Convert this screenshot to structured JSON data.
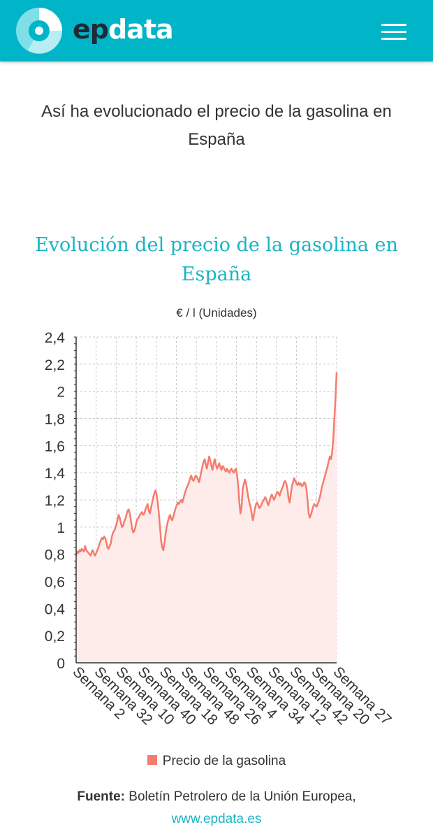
{
  "header": {
    "logo_ep": "ep",
    "logo_data": "data",
    "brand_color": "#00b5c8"
  },
  "page_title": "Así ha evolucionado el precio de la gasolina en España",
  "chart_data": {
    "type": "area",
    "title": "Evolución del precio de la gasolina en España",
    "ylabel": "€ / l (Unidades)",
    "ylim": [
      0,
      2.4
    ],
    "yticks": [
      "0",
      "0,2",
      "0,4",
      "0,6",
      "0,8",
      "1",
      "1,2",
      "1,4",
      "1,6",
      "1,8",
      "2",
      "2,2",
      "2,4"
    ],
    "xticks": [
      "Semana 2",
      "Semana 32",
      "Semana 10",
      "Semana 40",
      "Semana 18",
      "Semana 48",
      "Semana 26",
      "Semana 4",
      "Semana 34",
      "Semana 12",
      "Semana 42",
      "Semana 20",
      "Semana 27"
    ],
    "grid": true,
    "legend_position": "bottom",
    "series": [
      {
        "name": "Precio de la gasolina",
        "color": "#f47c6f",
        "values": [
          0.79,
          0.82,
          0.81,
          0.83,
          0.82,
          0.84,
          0.83,
          0.82,
          0.86,
          0.83,
          0.82,
          0.81,
          0.8,
          0.79,
          0.82,
          0.83,
          0.8,
          0.79,
          0.81,
          0.83,
          0.85,
          0.88,
          0.9,
          0.92,
          0.91,
          0.93,
          0.92,
          0.89,
          0.85,
          0.84,
          0.86,
          0.88,
          0.93,
          0.96,
          0.97,
          0.99,
          1.02,
          1.05,
          1.09,
          1.07,
          1.03,
          1.0,
          1.01,
          1.04,
          1.06,
          1.09,
          1.12,
          1.13,
          1.1,
          1.05,
          0.99,
          0.96,
          0.97,
          1.0,
          1.04,
          1.06,
          1.07,
          1.09,
          1.1,
          1.11,
          1.09,
          1.1,
          1.13,
          1.15,
          1.17,
          1.12,
          1.1,
          1.14,
          1.18,
          1.22,
          1.25,
          1.27,
          1.24,
          1.18,
          1.1,
          1.0,
          0.9,
          0.85,
          0.83,
          0.88,
          0.95,
          1.0,
          1.04,
          1.07,
          1.09,
          1.06,
          1.05,
          1.08,
          1.11,
          1.14,
          1.16,
          1.18,
          1.17,
          1.19,
          1.2,
          1.18,
          1.21,
          1.24,
          1.27,
          1.29,
          1.31,
          1.33,
          1.36,
          1.38,
          1.35,
          1.34,
          1.36,
          1.38,
          1.37,
          1.35,
          1.33,
          1.37,
          1.41,
          1.45,
          1.48,
          1.5,
          1.46,
          1.43,
          1.48,
          1.52,
          1.49,
          1.45,
          1.42,
          1.47,
          1.5,
          1.46,
          1.43,
          1.45,
          1.47,
          1.44,
          1.42,
          1.45,
          1.44,
          1.42,
          1.41,
          1.43,
          1.41,
          1.4,
          1.42,
          1.43,
          1.41,
          1.4,
          1.42,
          1.43,
          1.38,
          1.3,
          1.18,
          1.1,
          1.15,
          1.28,
          1.32,
          1.35,
          1.32,
          1.27,
          1.22,
          1.18,
          1.15,
          1.1,
          1.05,
          1.09,
          1.14,
          1.17,
          1.18,
          1.16,
          1.14,
          1.15,
          1.17,
          1.19,
          1.2,
          1.22,
          1.21,
          1.18,
          1.16,
          1.19,
          1.22,
          1.24,
          1.22,
          1.2,
          1.22,
          1.24,
          1.26,
          1.25,
          1.23,
          1.26,
          1.28,
          1.3,
          1.33,
          1.34,
          1.32,
          1.28,
          1.21,
          1.18,
          1.24,
          1.3,
          1.33,
          1.36,
          1.34,
          1.32,
          1.31,
          1.33,
          1.31,
          1.32,
          1.3,
          1.31,
          1.33,
          1.32,
          1.28,
          1.2,
          1.1,
          1.07,
          1.09,
          1.12,
          1.15,
          1.17,
          1.16,
          1.15,
          1.17,
          1.19,
          1.22,
          1.26,
          1.3,
          1.33,
          1.36,
          1.39,
          1.42,
          1.45,
          1.49,
          1.52,
          1.5,
          1.55,
          1.65,
          1.8,
          1.95,
          2.14
        ]
      }
    ]
  },
  "legend": {
    "label": "Precio de la gasolina"
  },
  "source": {
    "label": "Fuente:",
    "text": "Boletín Petrolero de la Unión Europea,",
    "link": "www.epdata.es"
  }
}
